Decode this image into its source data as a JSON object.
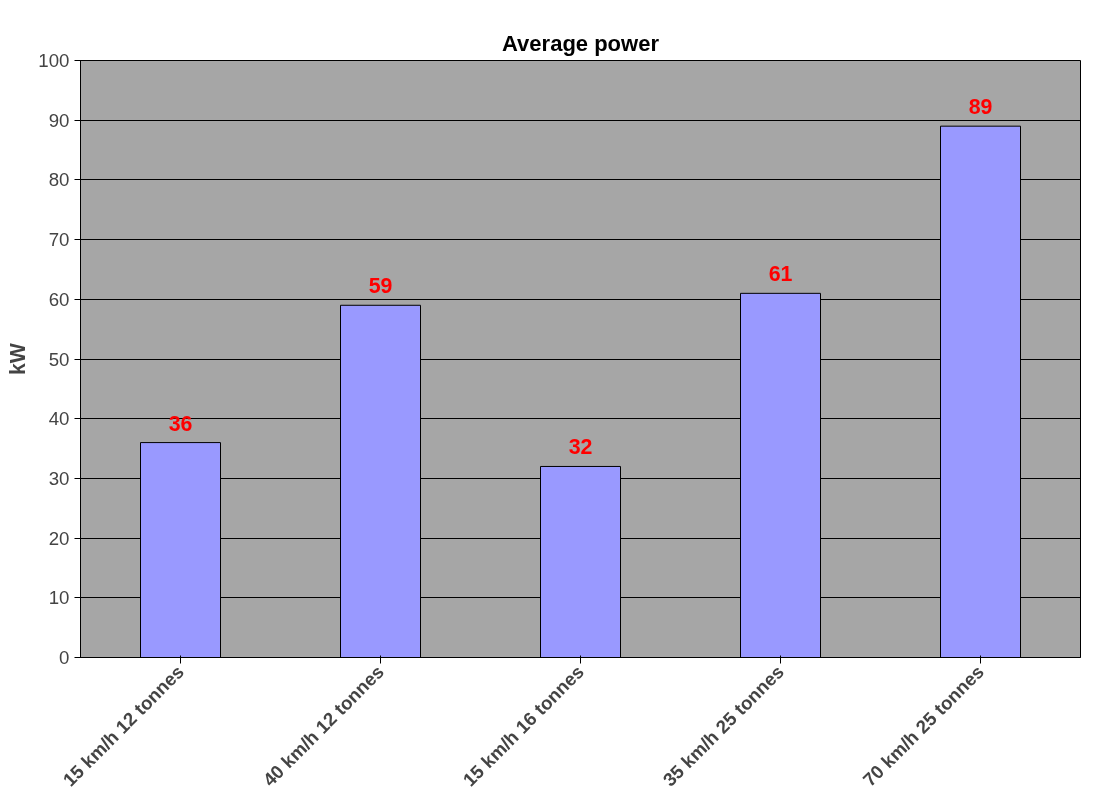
{
  "chart_data": {
    "type": "bar",
    "title": "Average power",
    "ylabel": "kW",
    "categories": [
      "15 km/h 12 tonnes",
      "40 km/h 12 tonnes",
      "15 km/h 16 tonnes",
      "35 km/h 25 tonnes",
      "70 km/h 25 tonnes"
    ],
    "values": [
      36,
      59,
      32,
      61,
      89
    ],
    "color": "#9999ff",
    "ylim": [
      0,
      100
    ],
    "yticks": [
      0,
      10,
      20,
      30,
      40,
      50,
      60,
      70,
      80,
      90,
      100
    ],
    "grid": "y",
    "data_labels": true
  }
}
